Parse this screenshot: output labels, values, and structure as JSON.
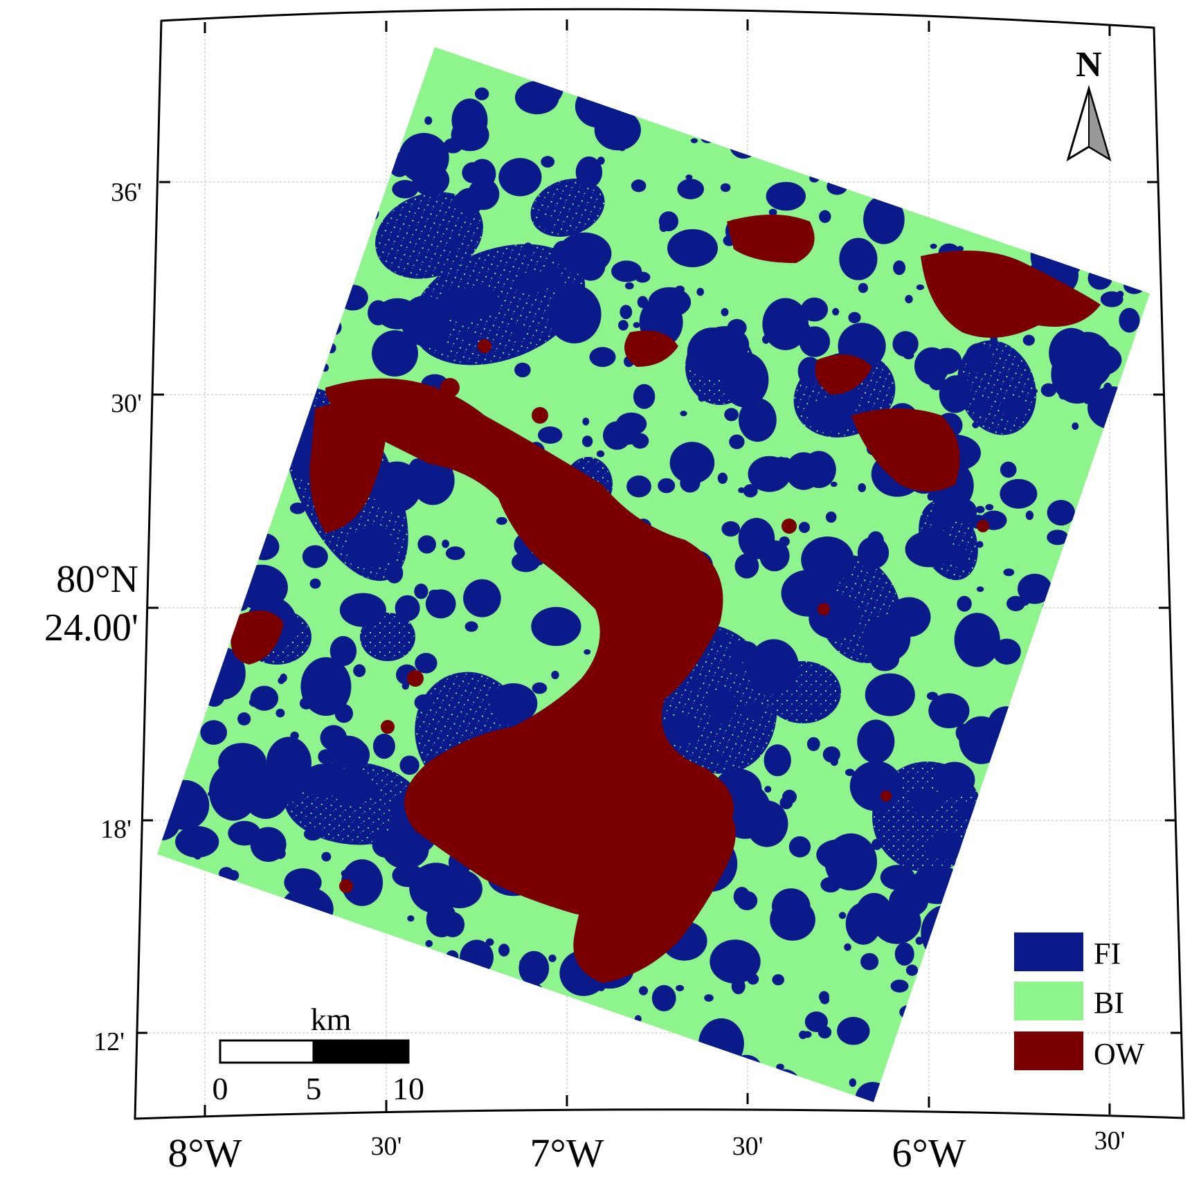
{
  "map": {
    "latitude_labels": [
      "36'",
      "30'",
      "80°N",
      "24.00'",
      "18'",
      "12'"
    ],
    "longitude_labels": [
      "8°W",
      "30'",
      "7°W",
      "30'",
      "6°W",
      "30'"
    ],
    "north_arrow": {
      "label": "N",
      "icon": "north-arrow-icon"
    },
    "scale_bar": {
      "unit": "km",
      "ticks": [
        "0",
        "5",
        "10"
      ]
    },
    "legend": [
      {
        "label": "FI",
        "color": "#0a1a8a"
      },
      {
        "label": "BI",
        "color": "#8ef58c"
      },
      {
        "label": "OW",
        "color": "#7a0000"
      }
    ],
    "colors": {
      "fast_ice": "#0a1a8a",
      "brash_ice": "#8ef58c",
      "open_water": "#7a0000",
      "frame": "#000000",
      "graticule": "#bbbbbb"
    }
  }
}
